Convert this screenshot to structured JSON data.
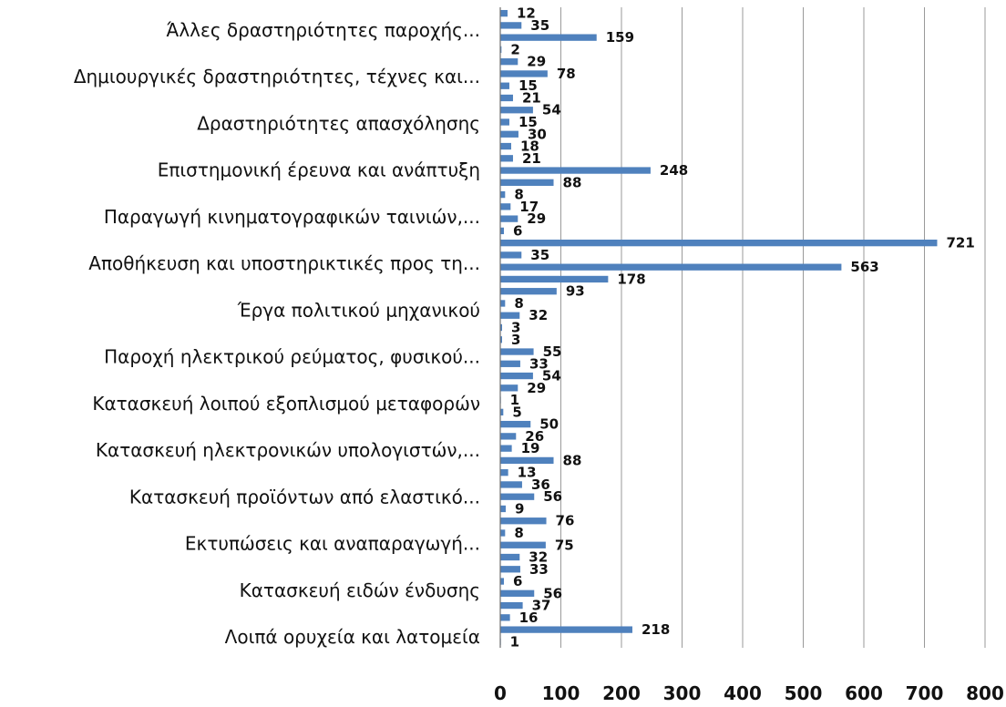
{
  "chart_data": {
    "type": "bar",
    "orientation": "horizontal",
    "color": "#4f81bd",
    "xlim": [
      0,
      800
    ],
    "xticks": [
      0,
      100,
      200,
      300,
      400,
      500,
      600,
      700,
      800
    ],
    "grid": true,
    "legend": "none",
    "category_labels": [
      "Άλλες δραστηριότητες παροχής...",
      "Δημιουργικές δραστηριότητες, τέχνες και...",
      "Δραστηριότητες απασχόλησης",
      "Επιστημονική έρευνα και ανάπτυξη",
      "Παραγωγή κινηματογραφικών ταινιών,...",
      "Αποθήκευση και υποστηρικτικές προς τη...",
      "Έργα πολιτικού μηχανικού",
      "Παροχή ηλεκτρικού ρεύματος, φυσικού...",
      "Κατασκευή λοιπού εξοπλισμού μεταφορών",
      "Κατασκευή ηλεκτρονικών υπολογιστών,...",
      "Κατασκευή προϊόντων από ελαστικό...",
      "Εκτυπώσεις και αναπαραγωγή...",
      "Κατασκευή ειδών ένδυσης",
      "Λοιπά ορυχεία και λατομεία"
    ],
    "values": [
      12,
      35,
      159,
      2,
      29,
      78,
      15,
      21,
      54,
      15,
      30,
      18,
      21,
      248,
      88,
      8,
      17,
      29,
      6,
      721,
      35,
      563,
      178,
      93,
      8,
      32,
      3,
      3,
      55,
      33,
      54,
      29,
      1,
      5,
      50,
      26,
      19,
      88,
      13,
      36,
      56,
      9,
      76,
      8,
      75,
      32,
      33,
      6,
      56,
      37,
      16,
      218,
      1
    ]
  }
}
